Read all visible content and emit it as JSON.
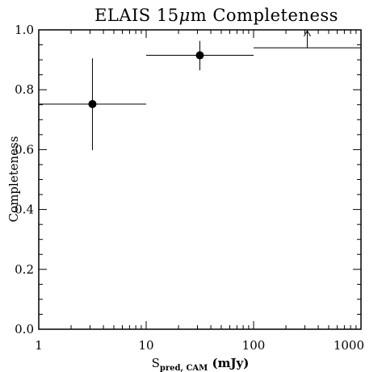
{
  "chart_data": {
    "type": "scatter",
    "title": "ELAIS 15",
    "title_symbol": "μ",
    "title_suffix": "m Completeness",
    "ylabel": "Completeness",
    "xlabel": {
      "main": "S",
      "subscript": "pred, CAM",
      "unit": " (mJy)"
    },
    "x_scale": "log",
    "xlim": [
      1,
      1000
    ],
    "ylim": [
      0.0,
      1.0
    ],
    "x_ticks": [
      {
        "value": 1,
        "label": "1"
      },
      {
        "value": 10,
        "label": "10"
      },
      {
        "value": 100,
        "label": "100"
      },
      {
        "value": 1000,
        "label": "1000"
      }
    ],
    "y_ticks": [
      {
        "value": 0.0,
        "label": "0.0"
      },
      {
        "value": 0.2,
        "label": "0.2"
      },
      {
        "value": 0.4,
        "label": "0.4"
      },
      {
        "value": 0.6,
        "label": "0.6"
      },
      {
        "value": 0.8,
        "label": "0.8"
      },
      {
        "value": 1.0,
        "label": "1.0"
      }
    ],
    "points": [
      {
        "x": 3.16,
        "y": 0.752,
        "x_low": 1,
        "x_high": 10,
        "y_low": 0.598,
        "y_high": 0.905
      },
      {
        "x": 31.6,
        "y": 0.915,
        "x_low": 10,
        "x_high": 100,
        "y_low": 0.865,
        "y_high": 0.963
      }
    ],
    "lower_limits": [
      {
        "x": 316,
        "y": 0.94,
        "x_low": 100,
        "x_high": 1000
      }
    ],
    "grid": false
  }
}
